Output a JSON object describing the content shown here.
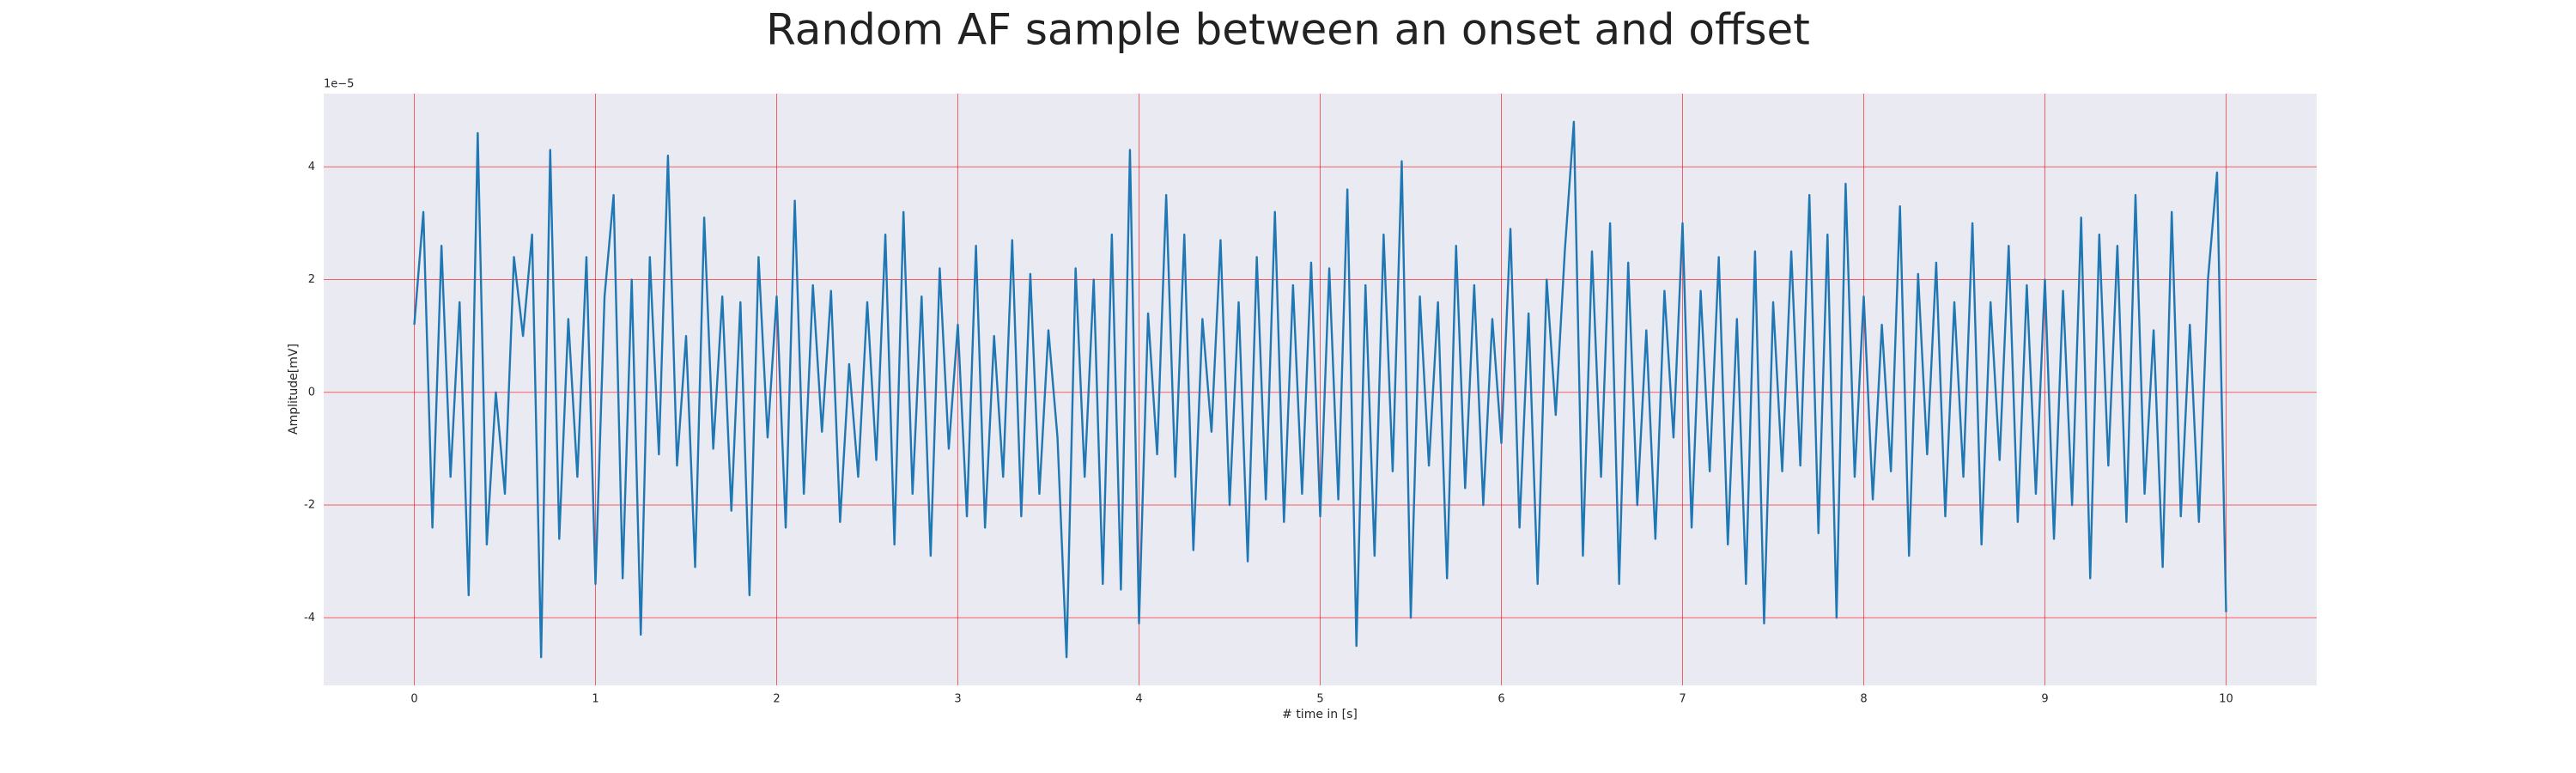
{
  "chart_data": {
    "type": "line",
    "title": "Random AF sample between an onset and offset",
    "x_label": "# time in [s]",
    "y_label": "Amplitude[mV]",
    "y_offset_label": "1e−5",
    "xlim": [
      -0.5,
      10.5
    ],
    "ylim": [
      -5.2,
      5.3
    ],
    "xticks": [
      0,
      1,
      2,
      3,
      4,
      5,
      6,
      7,
      8,
      9,
      10
    ],
    "yticks": [
      -4,
      -2,
      0,
      2,
      4
    ],
    "grid": true,
    "grid_color": "#ff0000",
    "background": "#eaeaf2",
    "x": [
      0,
      0.05,
      0.1,
      0.15,
      0.2,
      0.25,
      0.3,
      0.35,
      0.4,
      0.45,
      0.5,
      0.55,
      0.6,
      0.65,
      0.7,
      0.75,
      0.8,
      0.85,
      0.9,
      0.95,
      1,
      1.05,
      1.1,
      1.15,
      1.2,
      1.25,
      1.3,
      1.35,
      1.4,
      1.45,
      1.5,
      1.55,
      1.6,
      1.65,
      1.7,
      1.75,
      1.8,
      1.85,
      1.9,
      1.95,
      2,
      2.05,
      2.1,
      2.15,
      2.2,
      2.25,
      2.3,
      2.35,
      2.4,
      2.45,
      2.5,
      2.55,
      2.6,
      2.65,
      2.7,
      2.75,
      2.8,
      2.85,
      2.9,
      2.95,
      3,
      3.05,
      3.1,
      3.15,
      3.2,
      3.25,
      3.3,
      3.35,
      3.4,
      3.45,
      3.5,
      3.55,
      3.6,
      3.65,
      3.7,
      3.75,
      3.8,
      3.85,
      3.9,
      3.95,
      4,
      4.05,
      4.1,
      4.15,
      4.2,
      4.25,
      4.3,
      4.35,
      4.4,
      4.45,
      4.5,
      4.55,
      4.6,
      4.65,
      4.7,
      4.75,
      4.8,
      4.85,
      4.9,
      4.95,
      5,
      5.05,
      5.1,
      5.15,
      5.2,
      5.25,
      5.3,
      5.35,
      5.4,
      5.45,
      5.5,
      5.55,
      5.6,
      5.65,
      5.7,
      5.75,
      5.8,
      5.85,
      5.9,
      5.95,
      6,
      6.05,
      6.1,
      6.15,
      6.2,
      6.25,
      6.3,
      6.35,
      6.4,
      6.45,
      6.5,
      6.55,
      6.6,
      6.65,
      6.7,
      6.75,
      6.8,
      6.85,
      6.9,
      6.95,
      7,
      7.05,
      7.1,
      7.15,
      7.2,
      7.25,
      7.3,
      7.35,
      7.4,
      7.45,
      7.5,
      7.55,
      7.6,
      7.65,
      7.7,
      7.75,
      7.8,
      7.85,
      7.9,
      7.95,
      8,
      8.05,
      8.1,
      8.15,
      8.2,
      8.25,
      8.3,
      8.35,
      8.4,
      8.45,
      8.5,
      8.55,
      8.6,
      8.65,
      8.7,
      8.75,
      8.8,
      8.85,
      8.9,
      8.95,
      9,
      9.05,
      9.1,
      9.15,
      9.2,
      9.25,
      9.3,
      9.35,
      9.4,
      9.45,
      9.5,
      9.55,
      9.6,
      9.65,
      9.7,
      9.75,
      9.8,
      9.85,
      9.9,
      9.95,
      10
    ],
    "series": [
      {
        "color": "#1f77b4",
        "values": [
          1.2,
          3.2,
          -2.4,
          2.6,
          -1.5,
          1.6,
          -3.6,
          4.6,
          -2.7,
          0,
          -1.8,
          2.4,
          1.0,
          2.8,
          -4.7,
          4.3,
          -2.6,
          1.3,
          -1.5,
          2.4,
          -3.4,
          1.7,
          3.5,
          -3.3,
          2.0,
          -4.3,
          2.4,
          -1.1,
          4.2,
          -1.3,
          1.0,
          -3.1,
          3.1,
          -1.0,
          1.7,
          -2.1,
          1.6,
          -3.6,
          2.4,
          -0.8,
          1.7,
          -2.4,
          3.4,
          -1.8,
          1.9,
          -0.7,
          1.8,
          -2.3,
          0.5,
          -1.5,
          1.6,
          -1.2,
          2.8,
          -2.7,
          3.2,
          -1.8,
          1.7,
          -2.9,
          2.2,
          -1.0,
          1.2,
          -2.2,
          2.6,
          -2.4,
          1.0,
          -1.5,
          2.7,
          -2.2,
          2.1,
          -1.8,
          1.1,
          -0.8,
          -4.7,
          2.2,
          -1.5,
          2.0,
          -3.4,
          2.8,
          -3.5,
          4.3,
          -4.1,
          1.4,
          -1.1,
          3.5,
          -1.5,
          2.8,
          -2.8,
          1.3,
          -0.7,
          2.7,
          -2.0,
          1.6,
          -3.0,
          2.4,
          -1.9,
          3.2,
          -2.3,
          1.9,
          -1.8,
          2.3,
          -2.2,
          2.2,
          -1.9,
          3.6,
          -4.5,
          1.9,
          -2.9,
          2.8,
          -1.4,
          4.1,
          -4.0,
          1.7,
          -1.3,
          1.6,
          -3.3,
          2.6,
          -1.7,
          1.9,
          -2.0,
          1.3,
          -0.9,
          2.9,
          -2.4,
          1.4,
          -3.4,
          2.0,
          -0.4,
          2.5,
          4.8,
          -2.9,
          2.5,
          -1.5,
          3.0,
          -3.4,
          2.3,
          -2.0,
          1.1,
          -2.6,
          1.8,
          -0.8,
          3.0,
          -2.4,
          1.8,
          -1.4,
          2.4,
          -2.7,
          1.3,
          -3.4,
          2.5,
          -4.1,
          1.6,
          -1.4,
          2.5,
          -1.3,
          3.5,
          -2.5,
          2.8,
          -4.0,
          3.7,
          -1.5,
          1.7,
          -1.9,
          1.2,
          -1.4,
          3.3,
          -2.9,
          2.1,
          -1.1,
          2.3,
          -2.2,
          1.6,
          -1.5,
          3.0,
          -2.7,
          1.6,
          -1.2,
          2.6,
          -2.3,
          1.9,
          -1.8,
          2.0,
          -2.6,
          1.8,
          -2.0,
          3.1,
          -3.3,
          2.8,
          -1.3,
          2.6,
          -2.3,
          3.5,
          -1.8,
          1.1,
          -3.1,
          3.2,
          -2.2,
          1.2,
          -2.3,
          2.0,
          3.9,
          -3.9
        ]
      }
    ]
  }
}
